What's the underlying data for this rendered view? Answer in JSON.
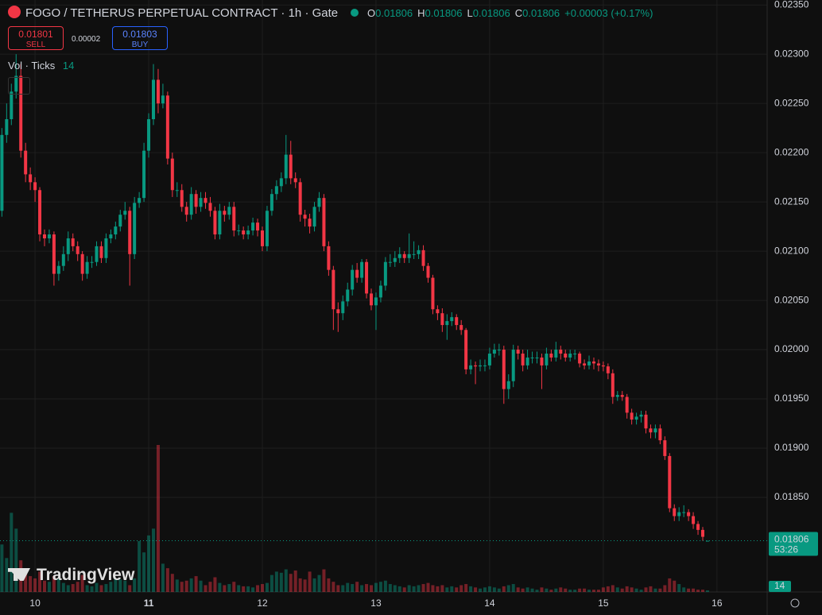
{
  "header": {
    "symbol": "FOGO / TETHERUS PERPETUAL CONTRACT · 1h · Gate",
    "ohlc_letters": [
      "O",
      "H",
      "L",
      "C"
    ],
    "change": "+0.00003 (+0.17%)",
    "vol_label": "Vol · Ticks",
    "watermark": "TradingView"
  },
  "trade": {
    "sell_price": "0.01801",
    "sell": "SELL",
    "spread": "0.00002",
    "buy_price": "0.01803",
    "buy": "BUY"
  },
  "chart_data": {
    "type": "candlestick",
    "up_color": "#089981",
    "down_color": "#f23645",
    "grid": true,
    "xlim": [
      -7.4,
      154.6
    ],
    "xticks": [
      {
        "value": 0,
        "label": "10"
      },
      {
        "value": 24,
        "label": "11"
      },
      {
        "value": 48,
        "label": "12"
      },
      {
        "value": 72,
        "label": "13"
      },
      {
        "value": 96,
        "label": "14"
      },
      {
        "value": 120,
        "label": "15"
      },
      {
        "value": 144,
        "label": "16"
      }
    ],
    "ylim": [
      0.01754,
      0.02355
    ],
    "yticks": [
      {
        "value": 0.0235,
        "label": "0.02350"
      },
      {
        "value": 0.023,
        "label": "0.02300"
      },
      {
        "value": 0.0225,
        "label": "0.02250"
      },
      {
        "value": 0.022,
        "label": "0.02200"
      },
      {
        "value": 0.0215,
        "label": "0.02150"
      },
      {
        "value": 0.021,
        "label": "0.02100"
      },
      {
        "value": 0.0205,
        "label": "0.02050"
      },
      {
        "value": 0.02,
        "label": "0.02000"
      },
      {
        "value": 0.0195,
        "label": "0.01950"
      },
      {
        "value": 0.019,
        "label": "0.01900"
      },
      {
        "value": 0.0185,
        "label": "0.01850"
      }
    ],
    "last_price": 0.01806,
    "countdown": "53:26",
    "x": [
      -7,
      -6,
      -5,
      -4,
      -3,
      -2,
      -1,
      0,
      1,
      2,
      3,
      4,
      5,
      6,
      7,
      8,
      9,
      10,
      11,
      12,
      13,
      14,
      15,
      16,
      17,
      18,
      19,
      20,
      21,
      22,
      23,
      24,
      25,
      26,
      27,
      28,
      29,
      30,
      31,
      32,
      33,
      34,
      35,
      36,
      37,
      38,
      39,
      40,
      41,
      42,
      43,
      44,
      45,
      46,
      47,
      48,
      49,
      50,
      51,
      52,
      53,
      54,
      55,
      56,
      57,
      58,
      59,
      60,
      61,
      62,
      63,
      64,
      65,
      66,
      67,
      68,
      69,
      70,
      71,
      72,
      73,
      74,
      75,
      76,
      77,
      78,
      79,
      80,
      81,
      82,
      83,
      84,
      85,
      86,
      87,
      88,
      89,
      90,
      91,
      92,
      93,
      94,
      95,
      96,
      97,
      98,
      99,
      100,
      101,
      102,
      103,
      104,
      105,
      106,
      107,
      108,
      109,
      110,
      111,
      112,
      113,
      114,
      115,
      116,
      117,
      118,
      119,
      120,
      121,
      122,
      123,
      124,
      125,
      126,
      127,
      128,
      129,
      130,
      131,
      132,
      133,
      134,
      135,
      136,
      137,
      138,
      139,
      140,
      141,
      142
    ],
    "open": [
      0.02141,
      0.02218,
      0.02234,
      0.02262,
      0.02278,
      0.02202,
      0.02178,
      0.0217,
      0.02162,
      0.02117,
      0.02113,
      0.02117,
      0.02077,
      0.02085,
      0.02097,
      0.02113,
      0.02105,
      0.02097,
      0.02077,
      0.02089,
      0.02089,
      0.02105,
      0.02093,
      0.02113,
      0.02117,
      0.02125,
      0.02137,
      0.02141,
      0.02097,
      0.02149,
      0.02154,
      0.02202,
      0.02234,
      0.02274,
      0.0225,
      0.02258,
      0.02194,
      0.02162,
      0.02162,
      0.02145,
      0.02137,
      0.02158,
      0.02145,
      0.02154,
      0.02149,
      0.02141,
      0.02117,
      0.02141,
      0.02137,
      0.02145,
      0.02121,
      0.02121,
      0.02117,
      0.02121,
      0.02129,
      0.02121,
      0.02105,
      0.02141,
      0.02158,
      0.02166,
      0.02174,
      0.02198,
      0.02174,
      0.0217,
      0.02137,
      0.02133,
      0.02125,
      0.02145,
      0.02154,
      0.02105,
      0.02081,
      0.02041,
      0.02037,
      0.02049,
      0.02061,
      0.02081,
      0.02073,
      0.02089,
      0.02057,
      0.02045,
      0.02053,
      0.02065,
      0.02089,
      0.02089,
      0.02093,
      0.02097,
      0.02093,
      0.02097,
      0.02097,
      0.02101,
      0.02085,
      0.02073,
      0.02041,
      0.02037,
      0.02025,
      0.02029,
      0.02033,
      0.02025,
      0.0202,
      0.0198,
      0.01984,
      0.01983,
      0.01984,
      0.01984,
      0.01996,
      0.02,
      0.02,
      0.0196,
      0.01968,
      0.02,
      0.01996,
      0.01984,
      0.01992,
      0.01992,
      0.01992,
      0.01984,
      0.01996,
      0.01992,
      0.02,
      0.01996,
      0.01992,
      0.01996,
      0.01996,
      0.01986,
      0.01984,
      0.01988,
      0.01986,
      0.01984,
      0.01983,
      0.01976,
      0.01952,
      0.01954,
      0.01952,
      0.01936,
      0.01929,
      0.01932,
      0.01934,
      0.0192,
      0.01916,
      0.0192,
      0.01908,
      0.01892,
      0.01839,
      0.01831,
      0.01835,
      0.01835,
      0.01831,
      0.01823,
      0.01817,
      0.01806
    ],
    "high": [
      0.02225,
      0.0225,
      0.0227,
      0.023,
      0.0229,
      0.0221,
      0.02185,
      0.02175,
      0.02165,
      0.02122,
      0.02122,
      0.0212,
      0.0209,
      0.02105,
      0.0212,
      0.02118,
      0.0211,
      0.021,
      0.02095,
      0.02095,
      0.0211,
      0.0211,
      0.02118,
      0.02122,
      0.0213,
      0.02142,
      0.0215,
      0.02145,
      0.02155,
      0.0216,
      0.0221,
      0.0224,
      0.0229,
      0.02285,
      0.0227,
      0.02262,
      0.022,
      0.0217,
      0.02168,
      0.0215,
      0.02165,
      0.02162,
      0.0216,
      0.0216,
      0.02155,
      0.02145,
      0.02148,
      0.02146,
      0.0215,
      0.0215,
      0.02127,
      0.02125,
      0.02126,
      0.02134,
      0.02133,
      0.02125,
      0.02146,
      0.02163,
      0.02172,
      0.0218,
      0.02218,
      0.02212,
      0.0218,
      0.02174,
      0.02142,
      0.02138,
      0.0215,
      0.0216,
      0.02158,
      0.0211,
      0.02085,
      0.02048,
      0.02055,
      0.02068,
      0.02086,
      0.02088,
      0.02092,
      0.02092,
      0.02062,
      0.02058,
      0.0207,
      0.02094,
      0.02097,
      0.021,
      0.02104,
      0.021,
      0.02118,
      0.0211,
      0.02106,
      0.02106,
      0.02088,
      0.02076,
      0.02045,
      0.02042,
      0.02036,
      0.02038,
      0.02036,
      0.0203,
      0.02022,
      0.0199,
      0.01988,
      0.0199,
      0.0199,
      0.02002,
      0.02006,
      0.02006,
      0.02004,
      0.01975,
      0.02005,
      0.02004,
      0.02,
      0.02,
      0.01998,
      0.01998,
      0.01996,
      0.02002,
      0.02,
      0.02008,
      0.02004,
      0.02,
      0.02,
      0.02,
      0.01998,
      0.0199,
      0.01994,
      0.01992,
      0.0199,
      0.01988,
      0.01986,
      0.0198,
      0.01958,
      0.01958,
      0.01955,
      0.0194,
      0.01936,
      0.01938,
      0.01938,
      0.01924,
      0.01924,
      0.01924,
      0.01912,
      0.01895,
      0.01843,
      0.0184,
      0.01842,
      0.01838,
      0.01835,
      0.01826,
      0.0182,
      0.01806
    ],
    "low": [
      0.02135,
      0.0221,
      0.02228,
      0.02255,
      0.02195,
      0.0217,
      0.02162,
      0.0215,
      0.0211,
      0.02105,
      0.02108,
      0.02065,
      0.0207,
      0.0208,
      0.0209,
      0.021,
      0.0209,
      0.0207,
      0.02072,
      0.02083,
      0.02085,
      0.02088,
      0.02088,
      0.02108,
      0.02112,
      0.0212,
      0.02132,
      0.02065,
      0.02092,
      0.02144,
      0.0215,
      0.02195,
      0.02228,
      0.0224,
      0.02245,
      0.02188,
      0.02155,
      0.02155,
      0.0214,
      0.0213,
      0.02132,
      0.02138,
      0.0214,
      0.02143,
      0.02135,
      0.02112,
      0.02112,
      0.0213,
      0.02132,
      0.02115,
      0.02116,
      0.02112,
      0.02112,
      0.02116,
      0.02115,
      0.021,
      0.021,
      0.02136,
      0.02152,
      0.0216,
      0.02168,
      0.02168,
      0.02164,
      0.0213,
      0.02125,
      0.02118,
      0.0212,
      0.0214,
      0.021,
      0.02075,
      0.0202,
      0.02018,
      0.0203,
      0.02044,
      0.02055,
      0.02068,
      0.02068,
      0.02052,
      0.0204,
      0.0202,
      0.02048,
      0.0206,
      0.02084,
      0.02084,
      0.02088,
      0.02088,
      0.02088,
      0.02092,
      0.02092,
      0.0208,
      0.02068,
      0.02036,
      0.0203,
      0.02018,
      0.0201,
      0.02024,
      0.0202,
      0.02015,
      0.01975,
      0.01975,
      0.01965,
      0.01978,
      0.01978,
      0.0198,
      0.01992,
      0.01994,
      0.01945,
      0.0195,
      0.01962,
      0.0199,
      0.01978,
      0.0198,
      0.01986,
      0.01986,
      0.0196,
      0.0198,
      0.01988,
      0.01988,
      0.0199,
      0.01988,
      0.01988,
      0.0199,
      0.01982,
      0.0198,
      0.0198,
      0.0198,
      0.01978,
      0.01978,
      0.0197,
      0.01945,
      0.01948,
      0.01948,
      0.0193,
      0.01924,
      0.01924,
      0.01926,
      0.01915,
      0.0191,
      0.0191,
      0.01904,
      0.01888,
      0.01835,
      0.01826,
      0.01826,
      0.0183,
      0.01826,
      0.01818,
      0.01812,
      0.01806,
      0.01806
    ],
    "close": [
      0.02218,
      0.02234,
      0.02262,
      0.02278,
      0.02202,
      0.02178,
      0.0217,
      0.02162,
      0.02117,
      0.02113,
      0.02117,
      0.02077,
      0.02085,
      0.02097,
      0.02113,
      0.02105,
      0.02097,
      0.02077,
      0.02089,
      0.02089,
      0.02105,
      0.02093,
      0.02113,
      0.02117,
      0.02125,
      0.02137,
      0.02141,
      0.02097,
      0.02149,
      0.02154,
      0.02202,
      0.02234,
      0.02274,
      0.0225,
      0.02258,
      0.02194,
      0.02162,
      0.02162,
      0.02145,
      0.02137,
      0.02158,
      0.02145,
      0.02154,
      0.02149,
      0.02141,
      0.02117,
      0.02141,
      0.02137,
      0.02145,
      0.02121,
      0.02121,
      0.02117,
      0.02121,
      0.02129,
      0.02121,
      0.02105,
      0.02141,
      0.02158,
      0.02166,
      0.02174,
      0.02198,
      0.02174,
      0.0217,
      0.02137,
      0.02133,
      0.02125,
      0.02145,
      0.02154,
      0.02105,
      0.02081,
      0.02041,
      0.02037,
      0.02049,
      0.02061,
      0.02081,
      0.02073,
      0.02089,
      0.02057,
      0.02045,
      0.02053,
      0.02065,
      0.02089,
      0.02089,
      0.02093,
      0.02097,
      0.02093,
      0.02097,
      0.02097,
      0.02101,
      0.02085,
      0.02073,
      0.02041,
      0.02037,
      0.02025,
      0.02029,
      0.02033,
      0.02025,
      0.0202,
      0.0198,
      0.01984,
      0.01983,
      0.01984,
      0.01984,
      0.01996,
      0.02,
      0.02,
      0.0196,
      0.01968,
      0.02,
      0.01996,
      0.01984,
      0.01992,
      0.01992,
      0.01992,
      0.01984,
      0.01996,
      0.01992,
      0.02,
      0.01996,
      0.01992,
      0.01996,
      0.01996,
      0.01986,
      0.01984,
      0.01988,
      0.01986,
      0.01984,
      0.01983,
      0.01976,
      0.01952,
      0.01954,
      0.01952,
      0.01936,
      0.01929,
      0.01932,
      0.01934,
      0.0192,
      0.01916,
      0.0192,
      0.01908,
      0.01892,
      0.01839,
      0.01831,
      0.01835,
      0.01835,
      0.01831,
      0.01823,
      0.01817,
      0.0181,
      0.01806
    ],
    "volume": [
      420,
      300,
      700,
      560,
      280,
      210,
      140,
      120,
      180,
      100,
      90,
      140,
      120,
      80,
      60,
      70,
      90,
      150,
      60,
      50,
      80,
      60,
      70,
      90,
      120,
      110,
      100,
      60,
      120,
      450,
      350,
      500,
      560,
      1300,
      250,
      210,
      160,
      110,
      90,
      100,
      120,
      140,
      100,
      60,
      90,
      130,
      80,
      60,
      70,
      90,
      60,
      50,
      50,
      40,
      60,
      70,
      80,
      150,
      180,
      170,
      200,
      160,
      190,
      120,
      110,
      180,
      120,
      150,
      200,
      120,
      90,
      60,
      60,
      80,
      70,
      90,
      60,
      70,
      60,
      80,
      90,
      100,
      70,
      60,
      50,
      40,
      60,
      50,
      60,
      70,
      80,
      60,
      50,
      60,
      40,
      50,
      40,
      60,
      70,
      50,
      40,
      30,
      40,
      50,
      40,
      30,
      50,
      60,
      70,
      40,
      30,
      40,
      30,
      20,
      40,
      30,
      20,
      30,
      40,
      30,
      20,
      20,
      30,
      30,
      20,
      20,
      20,
      40,
      50,
      60,
      40,
      30,
      50,
      40,
      30,
      20,
      40,
      50,
      30,
      30,
      60,
      120,
      100,
      70,
      40,
      30,
      30,
      20,
      20,
      14
    ]
  }
}
